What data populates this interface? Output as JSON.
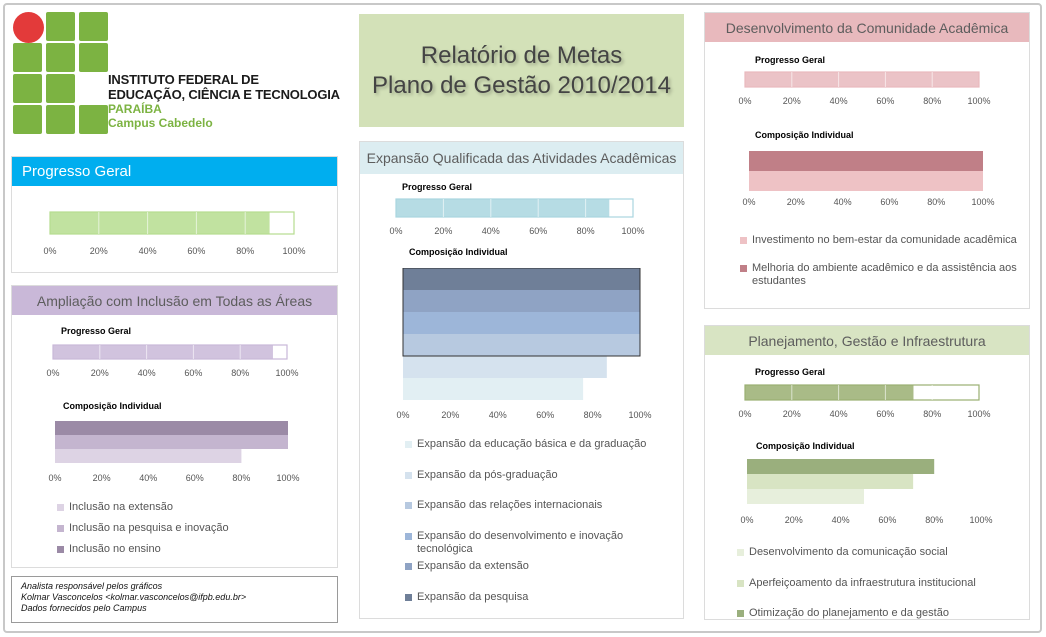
{
  "page": {
    "title_line1": "Relatório de Metas",
    "title_line2": "Plano de Gestão 2010/2014"
  },
  "logo": {
    "line1": "INSTITUTO FEDERAL DE",
    "line2": "EDUCAÇÃO, CIÊNCIA E TECNOLOGIA",
    "line3": "PARAÍBA",
    "line4": "Campus Cabedelo",
    "square_color": "#7cb342",
    "circle_color": "#e33a3a"
  },
  "credits": {
    "line1": "Analista responsável pelos gráficos",
    "line2": "Kolmar Vasconcelos <kolmar.vasconcelos@ifpb.edu.br>",
    "line3": "Dados fornecidos pelo Campus"
  },
  "ticks": [
    "0%",
    "20%",
    "40%",
    "60%",
    "80%",
    "100%"
  ],
  "panels": {
    "geral": {
      "header": "Progresso Geral",
      "color": "#00aeef"
    },
    "ampliacao": {
      "header": "Ampliação com Inclusão em Todas as Áreas",
      "color": "#c9b8d8"
    },
    "expansao": {
      "header": "Expansão Qualificada das Atividades Acadêmicas",
      "color": "#dcedf1"
    },
    "desenvolvimento": {
      "header": "Desenvolvimento da Comunidade Acadêmica",
      "color": "#e8b9bd"
    },
    "planejamento": {
      "header": "Planejamento, Gestão e Infraestrutura",
      "color": "#d8e4c3"
    }
  },
  "chart_data": [
    {
      "id": "geral-progresso",
      "type": "bar",
      "orientation": "horizontal",
      "title": "",
      "values": [
        90
      ],
      "xlim": [
        0,
        100
      ],
      "color": "#b6dd8f"
    },
    {
      "id": "ampliacao-progresso",
      "type": "bar",
      "orientation": "horizontal",
      "title": "Progresso Geral",
      "values": [
        94
      ],
      "xlim": [
        0,
        100
      ],
      "color": "#c9b8d8"
    },
    {
      "id": "ampliacao-composicao",
      "type": "bar",
      "orientation": "horizontal",
      "title": "Composição Individual",
      "series": [
        {
          "name": "Inclusão no ensino",
          "value": 100,
          "color": "#9b8aa6"
        },
        {
          "name": "Inclusão na pesquisa e inovação",
          "value": 100,
          "color": "#c4b5cf"
        },
        {
          "name": "Inclusão na extensão",
          "value": 80,
          "color": "#ddd3e4"
        }
      ],
      "legend_order": [
        "Inclusão na extensão",
        "Inclusão na pesquisa e inovação",
        "Inclusão no ensino"
      ],
      "xlim": [
        0,
        100
      ]
    },
    {
      "id": "expansao-progresso",
      "type": "bar",
      "orientation": "horizontal",
      "title": "Progresso Geral",
      "values": [
        90
      ],
      "xlim": [
        0,
        100
      ],
      "color": "#a9d6df"
    },
    {
      "id": "expansao-composicao",
      "type": "bar",
      "orientation": "horizontal",
      "title": "Composição Individual",
      "series": [
        {
          "name": "Expansão da pesquisa",
          "value": 100,
          "color": "#6f7f98"
        },
        {
          "name": "Expansão da extensão",
          "value": 100,
          "color": "#8fa3c4"
        },
        {
          "name": "Expansão do desenvolvimento e inovação tecnológica",
          "value": 100,
          "color": "#9db6d9"
        },
        {
          "name": "Expansão das relações internacionais",
          "value": 100,
          "color": "#b7c9e0"
        },
        {
          "name": "Expansão da pós-graduação",
          "value": 86,
          "color": "#d5e2ee"
        },
        {
          "name": "Expansão da educação básica e da graduação",
          "value": 76,
          "color": "#e2eff3"
        }
      ],
      "legend_order": [
        "Expansão da educação básica e da graduação",
        "Expansão da pós-graduação",
        "Expansão das relações internacionais",
        "Expansão do desenvolvimento e inovação tecnológica",
        "Expansão da extensão",
        "Expansão da pesquisa"
      ],
      "xlim": [
        0,
        100
      ]
    },
    {
      "id": "desenvolvimento-progresso",
      "type": "bar",
      "orientation": "horizontal",
      "title": "Progresso Geral",
      "values": [
        100
      ],
      "xlim": [
        0,
        100
      ],
      "color": "#e8b9bd"
    },
    {
      "id": "desenvolvimento-composicao",
      "type": "bar",
      "orientation": "horizontal",
      "title": "Composição Individual",
      "series": [
        {
          "name": "Melhoria do ambiente acadêmico e da assistência aos estudantes",
          "value": 100,
          "color": "#c07f87"
        },
        {
          "name": "Investimento no bem-estar da comunidade acadêmica",
          "value": 100,
          "color": "#eec2c5"
        }
      ],
      "legend_order": [
        "Investimento no bem-estar da comunidade acadêmica",
        "Melhoria do ambiente acadêmico e da assistência aos estudantes"
      ],
      "xlim": [
        0,
        100
      ]
    },
    {
      "id": "planejamento-progresso",
      "type": "bar",
      "orientation": "horizontal",
      "title": "Progresso Geral",
      "values": [
        72
      ],
      "xlim": [
        0,
        100
      ],
      "color": "#9aaf72"
    },
    {
      "id": "planejamento-composicao",
      "type": "bar",
      "orientation": "horizontal",
      "title": "Composição Individual",
      "series": [
        {
          "name": "Otimização do planejamento e da gestão",
          "value": 80,
          "color": "#9aaf7d"
        },
        {
          "name": "Aperfeiçoamento da infraestrutura institucional",
          "value": 71,
          "color": "#d8e4c3"
        },
        {
          "name": "Desenvolvimento da comunicação social",
          "value": 50,
          "color": "#e7efdc"
        }
      ],
      "legend_order": [
        "Desenvolvimento da comunicação social",
        "Aperfeiçoamento da infraestrutura institucional",
        "Otimização do planejamento e da gestão"
      ],
      "xlim": [
        0,
        100
      ]
    }
  ]
}
